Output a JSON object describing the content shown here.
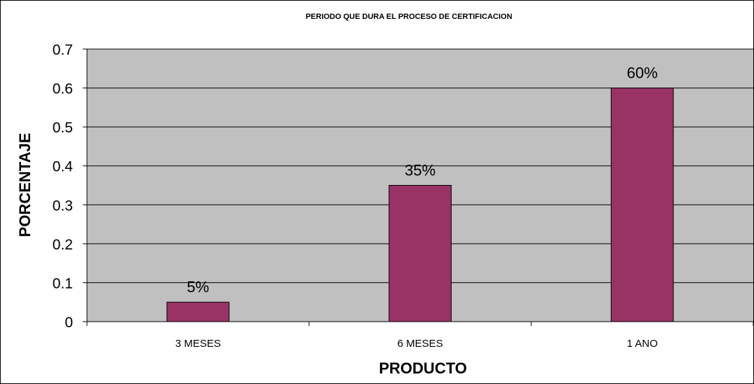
{
  "chart_data": {
    "type": "bar",
    "title": "PERIODO QUE DURA EL PROCESO DE CERTIFICACION",
    "xlabel": "PRODUCTO",
    "ylabel": "PORCENTAJE",
    "categories": [
      "3 MESES",
      "6 MESES",
      "1 ANO"
    ],
    "values": [
      0.05,
      0.35,
      0.6
    ],
    "data_labels": [
      "5%",
      "35%",
      "60%"
    ],
    "ylim": [
      0,
      0.7
    ],
    "yticks": [
      "0",
      "0.1",
      "0.2",
      "0.3",
      "0.4",
      "0.5",
      "0.6",
      "0.7"
    ],
    "grid": true,
    "legend": "none",
    "colors": {
      "bar": "#993366",
      "plot_background": "#c0c0c0",
      "gridline": "#000000"
    }
  }
}
